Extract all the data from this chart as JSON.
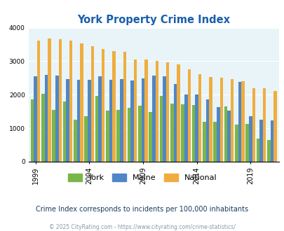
{
  "title": "York Property Crime Index",
  "years": [
    1999,
    2000,
    2001,
    2002,
    2003,
    2004,
    2005,
    2006,
    2007,
    2008,
    2009,
    2010,
    2011,
    2012,
    2013,
    2014,
    2015,
    2016,
    2017,
    2018,
    2019,
    2020,
    2021
  ],
  "york": [
    1850,
    2030,
    1550,
    1800,
    1260,
    1360,
    1960,
    1520,
    1550,
    1600,
    1680,
    1480,
    1960,
    1730,
    1720,
    1700,
    1200,
    1190,
    1650,
    1100,
    1120,
    690,
    650
  ],
  "maine": [
    2560,
    2600,
    2580,
    2470,
    2450,
    2440,
    2560,
    2450,
    2460,
    2420,
    2490,
    2570,
    2560,
    2310,
    2010,
    2000,
    1860,
    1640,
    1530,
    2390,
    1360,
    1260,
    1240
  ],
  "national": [
    3620,
    3680,
    3650,
    3610,
    3530,
    3450,
    3360,
    3310,
    3280,
    3060,
    3060,
    3010,
    2960,
    2900,
    2750,
    2620,
    2530,
    2500,
    2470,
    2400,
    2200,
    2190,
    2110
  ],
  "york_color": "#7ab648",
  "maine_color": "#4f86c6",
  "national_color": "#f0ad3e",
  "bg_color": "#e8f4f8",
  "title_color": "#1a5faa",
  "ylim": [
    0,
    4000
  ],
  "yticks": [
    0,
    1000,
    2000,
    3000,
    4000
  ],
  "xlabel_years": [
    1999,
    2004,
    2009,
    2014,
    2019
  ],
  "subtitle": "Crime Index corresponds to incidents per 100,000 inhabitants",
  "footer": "© 2025 CityRating.com - https://www.cityrating.com/crime-statistics/",
  "subtitle_color": "#1a3a5c",
  "footer_color": "#8899aa"
}
